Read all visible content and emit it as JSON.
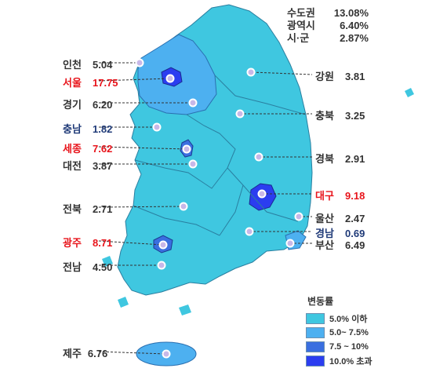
{
  "summary": [
    {
      "label": "수도권",
      "value": "13.08%"
    },
    {
      "label": "광역시",
      "value": "6.40%"
    },
    {
      "label": "시·군",
      "value": "2.87%"
    }
  ],
  "regions": {
    "incheon": {
      "name": "인천",
      "value": "5.04"
    },
    "seoul": {
      "name": "서울",
      "value": "17.75"
    },
    "gyeonggi": {
      "name": "경기",
      "value": "6.20"
    },
    "chungnam": {
      "name": "충남",
      "value": "1.82"
    },
    "sejong": {
      "name": "세종",
      "value": "7.62"
    },
    "daejeon": {
      "name": "대전",
      "value": "3.87"
    },
    "jeonbuk": {
      "name": "전북",
      "value": "2.71"
    },
    "gwangju": {
      "name": "광주",
      "value": "8.71"
    },
    "jeonnam": {
      "name": "전남",
      "value": "4.50"
    },
    "jeju": {
      "name": "제주",
      "value": "6.76"
    },
    "gangwon": {
      "name": "강원",
      "value": "3.81"
    },
    "chungbuk": {
      "name": "충북",
      "value": "3.25"
    },
    "gyeongbuk": {
      "name": "경북",
      "value": "2.91"
    },
    "daegu": {
      "name": "대구",
      "value": "9.18"
    },
    "ulsan": {
      "name": "울산",
      "value": "2.47"
    },
    "gyeongnam": {
      "name": "경남",
      "value": "0.69"
    },
    "busan": {
      "name": "부산",
      "value": "6.49"
    }
  },
  "legend": {
    "title": "변동률",
    "items": [
      {
        "label": "5.0% 이하",
        "color": "#3fc7e0"
      },
      {
        "label": "5.0~ 7.5%",
        "color": "#4db0f0"
      },
      {
        "label": "7.5 ~ 10%",
        "color": "#3a6fe0"
      },
      {
        "label": "10.0% 초과",
        "color": "#2b3df0"
      }
    ]
  },
  "colors": {
    "tier1": "#3fc7e0",
    "tier2": "#4db0f0",
    "tier3": "#3a6fe0",
    "tier4": "#2b3df0",
    "highlight": "#e8141b",
    "low": "#1f3a78"
  }
}
